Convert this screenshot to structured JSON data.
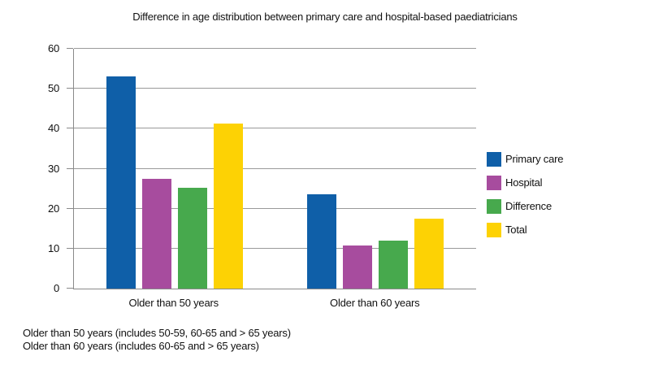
{
  "chart_data": {
    "type": "bar",
    "title": "Difference in age distribution between primary care and hospital-based paediatricians",
    "categories": [
      "Older than 50 years",
      "Older than 60 years"
    ],
    "series": [
      {
        "name": "Primary care",
        "color": "#0F5FA8",
        "values": [
          53,
          23.5
        ]
      },
      {
        "name": "Hospital",
        "color": "#A74C9E",
        "values": [
          27.5,
          10.7
        ]
      },
      {
        "name": "Difference",
        "color": "#47A94D",
        "values": [
          25.2,
          12
        ]
      },
      {
        "name": "Total",
        "color": "#FDD204",
        "values": [
          41.3,
          17.4
        ]
      }
    ],
    "xlabel": "",
    "ylabel": "",
    "ylim": [
      0,
      60
    ],
    "yticks": [
      0,
      10,
      20,
      30,
      40,
      50,
      60
    ],
    "grid": true,
    "legend_position": "right",
    "colors": {
      "gridline": "#9a9a9a",
      "axis": "#8a8a8a",
      "text": "#111111",
      "background": "#ffffff"
    }
  },
  "footnotes": [
    "Older than 50 years (includes 50-59, 60-65 and > 65 years)",
    "Older than 60 years (includes 60-65 and > 65 years)"
  ]
}
